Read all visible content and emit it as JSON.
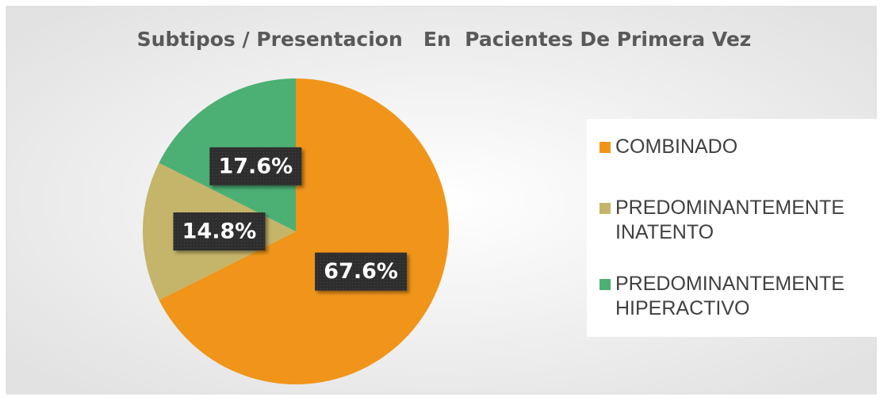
{
  "chart_data": {
    "type": "pie",
    "title": "Subtipos / Presentacion   En  Pacientes De Primera Vez",
    "categories": [
      "COMBINADO",
      "PREDOMINANTEMENTE INATENTO",
      "PREDOMINANTEMENTE HIPERACTIVO"
    ],
    "values": [
      67.6,
      14.8,
      17.6
    ],
    "value_labels": [
      "67.6%",
      "14.8%",
      "17.6%"
    ],
    "colors": [
      "#f0951a",
      "#c4b56a",
      "#4caf73"
    ],
    "legend": "right"
  }
}
